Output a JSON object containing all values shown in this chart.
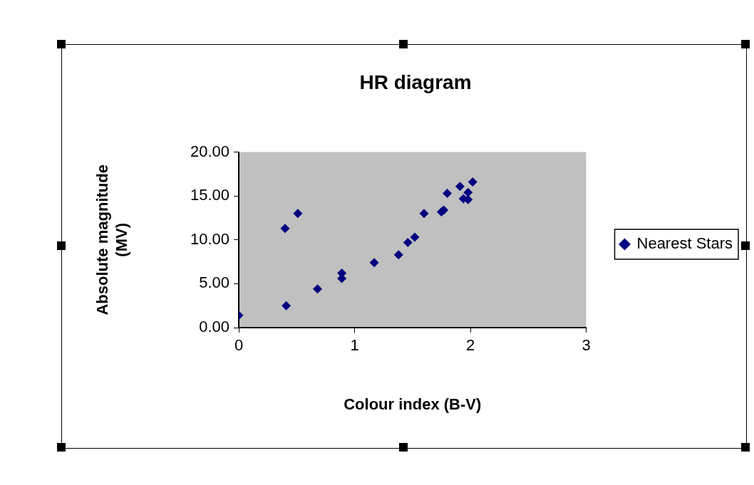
{
  "chart_data": {
    "type": "scatter",
    "title": "HR diagram",
    "xlabel": "Colour index (B-V)",
    "ylabel": "Absolute magnitude (MV)",
    "x": [
      0,
      0.41,
      0.4,
      0.51,
      0.68,
      0.89,
      0.89,
      1.17,
      1.38,
      1.46,
      1.52,
      1.6,
      1.75,
      1.77,
      1.8,
      1.91,
      1.94,
      1.98,
      1.98,
      2.02
    ],
    "series": [
      {
        "name": "Nearest Stars",
        "color": "#000080",
        "values": [
          1.4,
          2.5,
          11.3,
          13,
          4.4,
          6.2,
          5.6,
          7.4,
          8.3,
          9.7,
          10.3,
          13,
          13.2,
          13.4,
          15.3,
          16.1,
          14.7,
          14.6,
          15.4,
          16.6
        ]
      }
    ],
    "xlim": [
      0,
      3
    ],
    "xticks": [
      0,
      1,
      2,
      3
    ],
    "ylim": [
      0,
      20
    ],
    "yticks": [
      {
        "value": 0,
        "label": "0.00"
      },
      {
        "value": 5,
        "label": "5.00"
      },
      {
        "value": 10,
        "label": "10.00"
      },
      {
        "value": 15,
        "label": "15.00"
      },
      {
        "value": 20,
        "label": "20.00"
      }
    ],
    "grid": false,
    "legend": "right",
    "marker": "diamond"
  }
}
